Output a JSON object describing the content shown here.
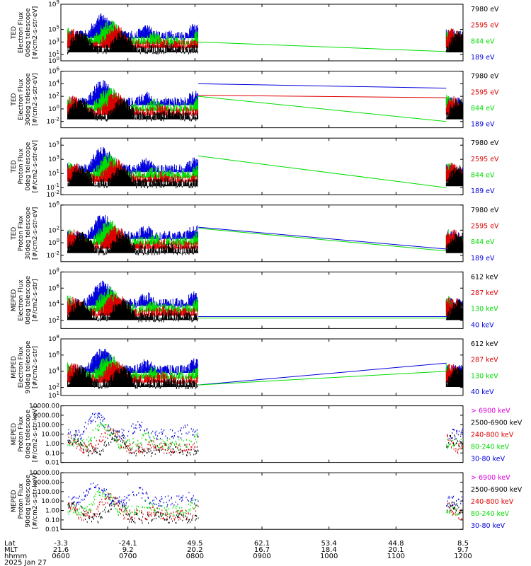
{
  "time_axis": {
    "row_labels": [
      "Lat",
      "MLT",
      "hhmm"
    ],
    "ticks": [
      {
        "lat": "-3.3",
        "mlt": "21.6",
        "hhmm": "0600"
      },
      {
        "lat": "-24.1",
        "mlt": "9.2",
        "hhmm": "0700"
      },
      {
        "lat": "49.5",
        "mlt": "20.2",
        "hhmm": "0800"
      },
      {
        "lat": "62.1",
        "mlt": "16.7",
        "hhmm": "0900"
      },
      {
        "lat": "53.4",
        "mlt": "18.4",
        "hhmm": "1000"
      },
      {
        "lat": "44.8",
        "mlt": "20.1",
        "hhmm": "1100"
      },
      {
        "lat": "8.5",
        "mlt": "9.7",
        "hhmm": "1200"
      }
    ],
    "date": "2025 Jan 27"
  },
  "chart_data": [
    {
      "type": "line",
      "ylabel": [
        "TED",
        "Electron Flux",
        "0deg telescope",
        "[#/cm2-s-str-eV]"
      ],
      "y_scale": "log",
      "ylim_exp": [
        0,
        9
      ],
      "y_ticks": [
        "10^0",
        "10^1",
        "10^3",
        "10^5",
        "10^9"
      ],
      "channels": [
        {
          "label": "7980 eV",
          "color": "#000000"
        },
        {
          "label": "2595 eV",
          "color": "#dd0000"
        },
        {
          "label": "844 eV",
          "color": "#00dd00"
        },
        {
          "label": "189 eV",
          "color": "#0000dd"
        }
      ],
      "gap_lines": [
        {
          "color": "#00dd00",
          "from": [
            8.05,
            1000.0
          ],
          "to": [
            11.75,
            30.0
          ]
        }
      ]
    },
    {
      "type": "line",
      "ylabel": [
        "TED",
        "Electron Flux",
        "30deg telescope",
        "[#/cm2-s-str-eV]"
      ],
      "y_scale": "log",
      "ylim_exp": [
        -3,
        6
      ],
      "y_ticks": [
        "10^-2",
        "10^0",
        "10^2",
        "10^4",
        "10^6"
      ],
      "channels": [
        {
          "label": "7980 eV",
          "color": "#000000"
        },
        {
          "label": "2595 eV",
          "color": "#dd0000"
        },
        {
          "label": "844 eV",
          "color": "#00dd00"
        },
        {
          "label": "189 eV",
          "color": "#0000dd"
        }
      ],
      "gap_lines": [
        {
          "color": "#0000dd",
          "from": [
            8.05,
            10000.0
          ],
          "to": [
            11.75,
            2000.0
          ]
        },
        {
          "color": "#dd0000",
          "from": [
            8.05,
            150.0
          ],
          "to": [
            11.75,
            60.0
          ]
        },
        {
          "color": "#00dd00",
          "from": [
            8.05,
            100.0
          ],
          "to": [
            11.75,
            0.01
          ]
        }
      ]
    },
    {
      "type": "line",
      "ylabel": [
        "TED",
        "Proton Flux",
        "0deg telescope",
        "[#/cm2-s-str-eV]"
      ],
      "y_scale": "log",
      "ylim_exp": [
        -2,
        6
      ],
      "y_ticks": [
        "10^-2",
        "10^-1",
        "10^1",
        "10^3",
        "10^5"
      ],
      "channels": [
        {
          "label": "7980 eV",
          "color": "#000000"
        },
        {
          "label": "2595 eV",
          "color": "#dd0000"
        },
        {
          "label": "844 eV",
          "color": "#00dd00"
        },
        {
          "label": "189 eV",
          "color": "#0000dd"
        }
      ],
      "gap_lines": [
        {
          "color": "#00dd00",
          "from": [
            8.05,
            3000.0
          ],
          "to": [
            11.75,
            0.1
          ]
        }
      ]
    },
    {
      "type": "line",
      "ylabel": [
        "TED",
        "Proton Flux",
        "30deg telescope",
        "[#/cm2-s-str-eV]"
      ],
      "y_scale": "log",
      "ylim_exp": [
        -3,
        6
      ],
      "y_ticks": [
        "10^-2",
        "10^0",
        "10^2",
        "10^6"
      ],
      "channels": [
        {
          "label": "7980 eV",
          "color": "#000000"
        },
        {
          "label": "2595 eV",
          "color": "#dd0000"
        },
        {
          "label": "844 eV",
          "color": "#00dd00"
        },
        {
          "label": "189 eV",
          "color": "#0000dd"
        }
      ],
      "gap_lines": [
        {
          "color": "#0000dd",
          "from": [
            8.05,
            300.0
          ],
          "to": [
            11.75,
            0.1
          ]
        },
        {
          "color": "#00dd00",
          "from": [
            8.05,
            200.0
          ],
          "to": [
            11.75,
            0.05
          ]
        }
      ]
    },
    {
      "type": "line",
      "ylabel": [
        "MEPED",
        "Electron Flux",
        "0deg telescope",
        "[#/cm2-s-str]"
      ],
      "y_scale": "log",
      "ylim_exp": [
        1,
        8
      ],
      "y_ticks": [
        "10^2",
        "10^4",
        "10^6",
        "10^8"
      ],
      "channels": [
        {
          "label": "612 keV",
          "color": "#000000"
        },
        {
          "label": "287 keV",
          "color": "#dd0000"
        },
        {
          "label": "130 keV",
          "color": "#00dd00"
        },
        {
          "label": "40 keV",
          "color": "#0000dd"
        }
      ],
      "gap_lines": [
        {
          "color": "#0000dd",
          "from": [
            8.05,
            300.0
          ],
          "to": [
            11.75,
            300.0
          ]
        },
        {
          "color": "#00dd00",
          "from": [
            8.05,
            200.0
          ],
          "to": [
            11.75,
            200.0
          ]
        }
      ]
    },
    {
      "type": "line",
      "ylabel": [
        "MEPED",
        "Electron Flux",
        "90deg telescope",
        "[#/cm2-s-str]"
      ],
      "y_scale": "log",
      "ylim_exp": [
        1,
        8
      ],
      "y_ticks": [
        "10^1",
        "10^2",
        "10^4",
        "10^6",
        "10^8"
      ],
      "channels": [
        {
          "label": "612 keV",
          "color": "#000000"
        },
        {
          "label": "287 keV",
          "color": "#dd0000"
        },
        {
          "label": "130 keV",
          "color": "#00dd00"
        },
        {
          "label": "40 keV",
          "color": "#0000dd"
        }
      ],
      "gap_lines": [
        {
          "color": "#0000dd",
          "from": [
            8.05,
            200.0
          ],
          "to": [
            11.75,
            100000.0
          ]
        },
        {
          "color": "#00dd00",
          "from": [
            8.05,
            200.0
          ],
          "to": [
            11.75,
            10000.0
          ]
        }
      ]
    },
    {
      "type": "scatter",
      "ylabel": [
        "MEPED",
        "Proton Flux",
        "0deg telescope",
        "[#/cm2-s-str-keV]"
      ],
      "y_scale": "log",
      "ylim_exp": [
        -2,
        4
      ],
      "y_ticks": [
        "0.01",
        "0.10",
        "1.00",
        "10.00",
        "100.00",
        "1000.00",
        "10000.00"
      ],
      "channels": [
        {
          "label": "> 6900 keV",
          "color": "#dd00dd"
        },
        {
          "label": "2500-6900 keV",
          "color": "#000000"
        },
        {
          "label": "240-800 keV",
          "color": "#dd0000"
        },
        {
          "label": "80-240 keV",
          "color": "#00dd00"
        },
        {
          "label": "30-80 keV",
          "color": "#0000dd"
        }
      ],
      "gap_lines": []
    },
    {
      "type": "scatter",
      "ylabel": [
        "MEPED",
        "Proton Flux",
        "90deg telescope",
        "[#/cm2-s-str-keV]"
      ],
      "y_scale": "log",
      "ylim_exp": [
        -2,
        4
      ],
      "y_ticks": [
        "0.01",
        "0.10",
        "1.00",
        "10.00",
        "100.00",
        "1000.00",
        "10000.00"
      ],
      "channels": [
        {
          "label": "> 6900 keV",
          "color": "#dd00dd"
        },
        {
          "label": "2500-6900 keV",
          "color": "#000000"
        },
        {
          "label": "240-800 keV",
          "color": "#dd0000"
        },
        {
          "label": "80-240 keV",
          "color": "#00dd00"
        },
        {
          "label": "30-80 keV",
          "color": "#0000dd"
        }
      ],
      "gap_lines": []
    }
  ],
  "x_range_hours": [
    6,
    12
  ],
  "data_windows_hours": [
    [
      6.1,
      8.05
    ],
    [
      11.75,
      12.0
    ]
  ]
}
